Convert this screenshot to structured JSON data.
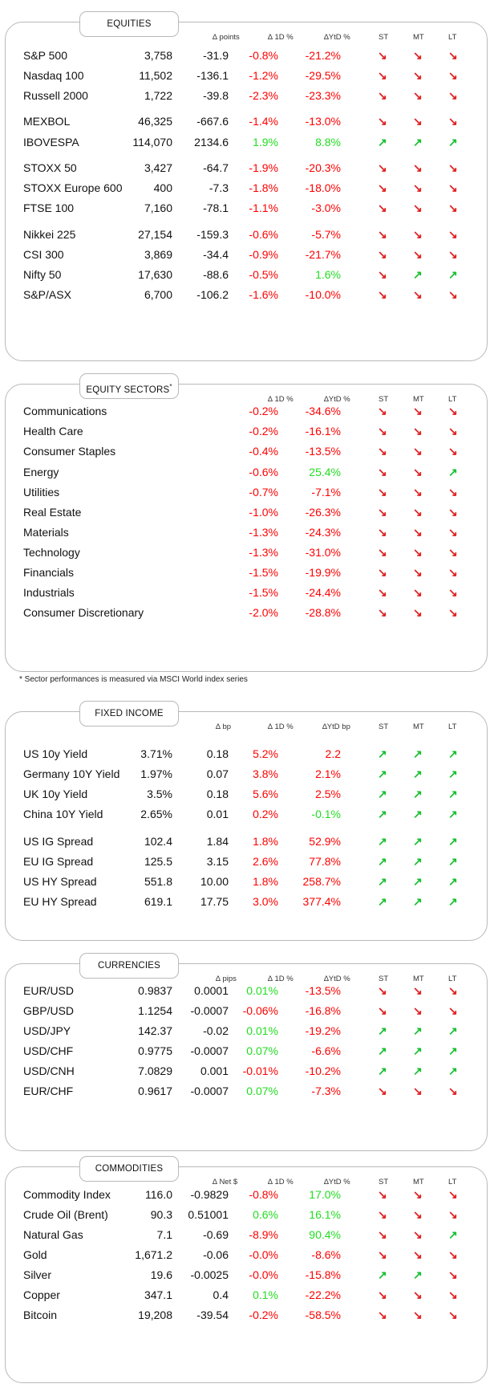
{
  "colors": {
    "negative": "#ff0000",
    "positive": "#22dd22",
    "arrow_down": "#e02020",
    "arrow_up": "#18c030",
    "border": "#b9b9b9"
  },
  "sections": [
    {
      "key": "equities",
      "title": "EQUITIES",
      "headers": {
        "chg": "∆ points",
        "d1": "∆ 1D %",
        "ytd": "∆YtD %",
        "st": "ST",
        "mt": "MT",
        "lt": "LT"
      },
      "rows": [
        {
          "name": "S&P 500",
          "level": "3,758",
          "chg": "-31.9",
          "d1": "-0.8%",
          "ytd": "-21.2%",
          "st": "down",
          "mt": "down",
          "lt": "down"
        },
        {
          "name": "Nasdaq 100",
          "level": "11,502",
          "chg": "-136.1",
          "d1": "-1.2%",
          "ytd": "-29.5%",
          "st": "down",
          "mt": "down",
          "lt": "down"
        },
        {
          "name": "Russell 2000",
          "level": "1,722",
          "chg": "-39.8",
          "d1": "-2.3%",
          "ytd": "-23.3%",
          "st": "down",
          "mt": "down",
          "lt": "down"
        },
        {
          "name": "MEXBOL",
          "level": "46,325",
          "chg": "-667.6",
          "d1": "-1.4%",
          "ytd": "-13.0%",
          "st": "down",
          "mt": "down",
          "lt": "down"
        },
        {
          "name": "IBOVESPA",
          "level": "114,070",
          "chg": "2134.6",
          "d1": "1.9%",
          "ytd": "8.8%",
          "st": "up",
          "mt": "up",
          "lt": "up"
        },
        {
          "name": "STOXX 50",
          "level": "3,427",
          "chg": "-64.7",
          "d1": "-1.9%",
          "ytd": "-20.3%",
          "st": "down",
          "mt": "down",
          "lt": "down"
        },
        {
          "name": "STOXX Europe 600",
          "level": "400",
          "chg": "-7.3",
          "d1": "-1.8%",
          "ytd": "-18.0%",
          "st": "down",
          "mt": "down",
          "lt": "down"
        },
        {
          "name": "FTSE 100",
          "level": "7,160",
          "chg": "-78.1",
          "d1": "-1.1%",
          "ytd": "-3.0%",
          "st": "down",
          "mt": "down",
          "lt": "down"
        },
        {
          "name": "Nikkei 225",
          "level": "27,154",
          "chg": "-159.3",
          "d1": "-0.6%",
          "ytd": "-5.7%",
          "st": "down",
          "mt": "down",
          "lt": "down"
        },
        {
          "name": "CSI 300",
          "level": "3,869",
          "chg": "-34.4",
          "d1": "-0.9%",
          "ytd": "-21.7%",
          "st": "down",
          "mt": "down",
          "lt": "down"
        },
        {
          "name": "Nifty  50",
          "level": "17,630",
          "chg": "-88.6",
          "d1": "-0.5%",
          "ytd": "1.6%",
          "st": "down",
          "mt": "up",
          "lt": "up"
        },
        {
          "name": "S&P/ASX",
          "level": "6,700",
          "chg": "-106.2",
          "d1": "-1.6%",
          "ytd": "-10.0%",
          "st": "down",
          "mt": "down",
          "lt": "down"
        }
      ]
    },
    {
      "key": "sectors",
      "title": "EQUITY SECTORS",
      "title_mark": "*",
      "headers": {
        "d1": "∆ 1D %",
        "ytd": "∆YtD %",
        "st": "ST",
        "mt": "MT",
        "lt": "LT"
      },
      "rows": [
        {
          "name": "Communications",
          "d1": "-0.2%",
          "ytd": "-34.6%",
          "st": "down",
          "mt": "down",
          "lt": "down"
        },
        {
          "name": "Health Care",
          "d1": "-0.2%",
          "ytd": "-16.1%",
          "st": "down",
          "mt": "down",
          "lt": "down"
        },
        {
          "name": "Consumer Staples",
          "d1": "-0.4%",
          "ytd": "-13.5%",
          "st": "down",
          "mt": "down",
          "lt": "down"
        },
        {
          "name": "Energy",
          "d1": "-0.6%",
          "ytd": "25.4%",
          "st": "down",
          "mt": "down",
          "lt": "up"
        },
        {
          "name": "Utilities",
          "d1": "-0.7%",
          "ytd": "-7.1%",
          "st": "down",
          "mt": "down",
          "lt": "down"
        },
        {
          "name": "Real Estate",
          "d1": "-1.0%",
          "ytd": "-26.3%",
          "st": "down",
          "mt": "down",
          "lt": "down"
        },
        {
          "name": "Materials",
          "d1": "-1.3%",
          "ytd": "-24.3%",
          "st": "down",
          "mt": "down",
          "lt": "down"
        },
        {
          "name": "Technology",
          "d1": "-1.3%",
          "ytd": "-31.0%",
          "st": "down",
          "mt": "down",
          "lt": "down"
        },
        {
          "name": "Financials",
          "d1": "-1.5%",
          "ytd": "-19.9%",
          "st": "down",
          "mt": "down",
          "lt": "down"
        },
        {
          "name": "Industrials",
          "d1": "-1.5%",
          "ytd": "-24.4%",
          "st": "down",
          "mt": "down",
          "lt": "down"
        },
        {
          "name": "Consumer Discretionary",
          "d1": "-2.0%",
          "ytd": "-28.8%",
          "st": "down",
          "mt": "down",
          "lt": "down"
        }
      ]
    },
    {
      "key": "fixed",
      "title": "FIXED INCOME",
      "headers": {
        "chg": "∆ bp",
        "d1": "∆ 1D %",
        "ytd": "∆YtD bp",
        "st": "ST",
        "mt": "MT",
        "lt": "LT"
      },
      "rows": [
        {
          "name": "US 10y Yield",
          "level": "3.71%",
          "chg": "0.18",
          "d1": "5.2%",
          "ytd": "2.2",
          "st": "up",
          "mt": "up",
          "lt": "up",
          "d1_color": "neg",
          "ytd_color": "neg"
        },
        {
          "name": "Germany 10Y Yield",
          "level": "1.97%",
          "chg": "0.07",
          "d1": "3.8%",
          "ytd": "2.1%",
          "st": "up",
          "mt": "up",
          "lt": "up",
          "d1_color": "neg",
          "ytd_color": "neg"
        },
        {
          "name": "UK 10y Yield",
          "level": "3.5%",
          "chg": "0.18",
          "d1": "5.6%",
          "ytd": "2.5%",
          "st": "up",
          "mt": "up",
          "lt": "up",
          "d1_color": "neg",
          "ytd_color": "neg"
        },
        {
          "name": "China 10Y Yield",
          "level": "2.65%",
          "chg": "0.01",
          "d1": "0.2%",
          "ytd": "-0.1%",
          "st": "up",
          "mt": "up",
          "lt": "up",
          "d1_color": "neg",
          "ytd_color": "pos"
        },
        {
          "name": "US IG Spread",
          "level": "102.4",
          "chg": "1.84",
          "d1": "1.8%",
          "ytd": "52.9%",
          "st": "up",
          "mt": "up",
          "lt": "up",
          "d1_color": "neg",
          "ytd_color": "neg"
        },
        {
          "name": "EU IG Spread",
          "level": "125.5",
          "chg": "3.15",
          "d1": "2.6%",
          "ytd": "77.8%",
          "st": "up",
          "mt": "up",
          "lt": "up",
          "d1_color": "neg",
          "ytd_color": "neg"
        },
        {
          "name": "US HY Spread",
          "level": "551.8",
          "chg": "10.00",
          "d1": "1.8%",
          "ytd": "258.7%",
          "st": "up",
          "mt": "up",
          "lt": "up",
          "d1_color": "neg",
          "ytd_color": "neg"
        },
        {
          "name": "EU HY Spread",
          "level": "619.1",
          "chg": "17.75",
          "d1": "3.0%",
          "ytd": "377.4%",
          "st": "up",
          "mt": "up",
          "lt": "up",
          "d1_color": "neg",
          "ytd_color": "neg"
        }
      ]
    },
    {
      "key": "currencies",
      "title": "CURRENCIES",
      "headers": {
        "chg": "∆ pips",
        "d1": "∆ 1D %",
        "ytd": "∆YtD %",
        "st": "ST",
        "mt": "MT",
        "lt": "LT"
      },
      "rows": [
        {
          "name": "EUR/USD",
          "level": "0.9837",
          "chg": "0.0001",
          "d1": "0.01%",
          "ytd": "-13.5%",
          "st": "down",
          "mt": "down",
          "lt": "down"
        },
        {
          "name": "GBP/USD",
          "level": "1.1254",
          "chg": "-0.0007",
          "d1": "-0.06%",
          "ytd": "-16.8%",
          "st": "down",
          "mt": "down",
          "lt": "down"
        },
        {
          "name": "USD/JPY",
          "level": "142.37",
          "chg": "-0.02",
          "d1": "0.01%",
          "ytd": "-19.2%",
          "st": "up",
          "mt": "up",
          "lt": "up"
        },
        {
          "name": "USD/CHF",
          "level": "0.9775",
          "chg": "-0.0007",
          "d1": "0.07%",
          "ytd": "-6.6%",
          "st": "up",
          "mt": "up",
          "lt": "up"
        },
        {
          "name": "USD/CNH",
          "level": "7.0829",
          "chg": "0.001",
          "d1": "-0.01%",
          "ytd": "-10.2%",
          "st": "up",
          "mt": "up",
          "lt": "up"
        },
        {
          "name": "EUR/CHF",
          "level": "0.9617",
          "chg": "-0.0007",
          "d1": "0.07%",
          "ytd": "-7.3%",
          "st": "down",
          "mt": "down",
          "lt": "down"
        }
      ]
    },
    {
      "key": "commodities",
      "title": "COMMODITIES",
      "headers": {
        "chg": "∆ Net $",
        "d1": "∆ 1D %",
        "ytd": "∆YtD %",
        "st": "ST",
        "mt": "MT",
        "lt": "LT"
      },
      "rows": [
        {
          "name": "Commodity Index",
          "level": "116.0",
          "chg": "-0.9829",
          "d1": "-0.8%",
          "ytd": "17.0%",
          "st": "down",
          "mt": "down",
          "lt": "down"
        },
        {
          "name": "Crude Oil (Brent)",
          "level": "90.3",
          "chg": "0.51001",
          "d1": "0.6%",
          "ytd": "16.1%",
          "st": "down",
          "mt": "down",
          "lt": "down"
        },
        {
          "name": "Natural Gas",
          "level": "7.1",
          "chg": "-0.69",
          "d1": "-8.9%",
          "ytd": "90.4%",
          "st": "down",
          "mt": "down",
          "lt": "up"
        },
        {
          "name": "Gold",
          "level": "1,671.2",
          "chg": "-0.06",
          "d1": "-0.0%",
          "ytd": "-8.6%",
          "st": "down",
          "mt": "down",
          "lt": "down"
        },
        {
          "name": "Silver",
          "level": "19.6",
          "chg": "-0.0025",
          "d1": "-0.0%",
          "ytd": "-15.8%",
          "st": "up",
          "mt": "up",
          "lt": "down"
        },
        {
          "name": "Copper",
          "level": "347.1",
          "chg": "0.4",
          "d1": "0.1%",
          "ytd": "-22.2%",
          "st": "down",
          "mt": "down",
          "lt": "down"
        },
        {
          "name": "Bitcoin",
          "level": "19,208",
          "chg": "-39.54",
          "d1": "-0.2%",
          "ytd": "-58.5%",
          "st": "down",
          "mt": "down",
          "lt": "down"
        }
      ]
    }
  ],
  "footnote": "* Sector performances is measured via MSCI World index series"
}
